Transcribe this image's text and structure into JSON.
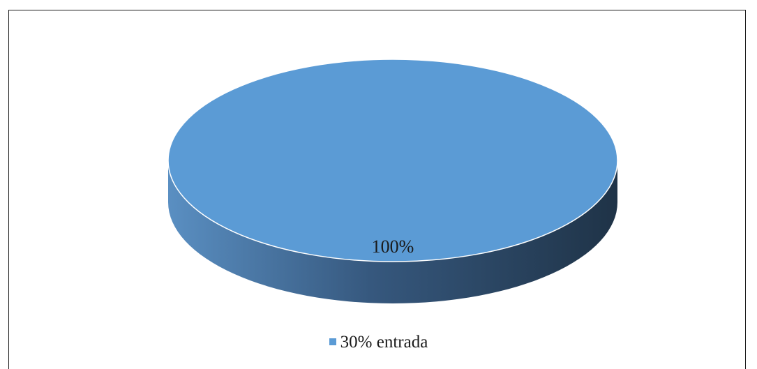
{
  "chart_data": {
    "type": "pie",
    "categories": [
      "30% entrada"
    ],
    "values": [
      100
    ],
    "data_labels": [
      "100%"
    ],
    "legend": {
      "entries": [
        "30% entrada"
      ],
      "placement": "bottom"
    },
    "style": "3d",
    "colors": {
      "slice_top": "#5b9bd5",
      "side_light": "#4f81b8",
      "side_dark": "#1f3a52",
      "edge": "#ffffff",
      "label_text": "#1a1a1a",
      "frame": "#1a1a1a"
    }
  }
}
